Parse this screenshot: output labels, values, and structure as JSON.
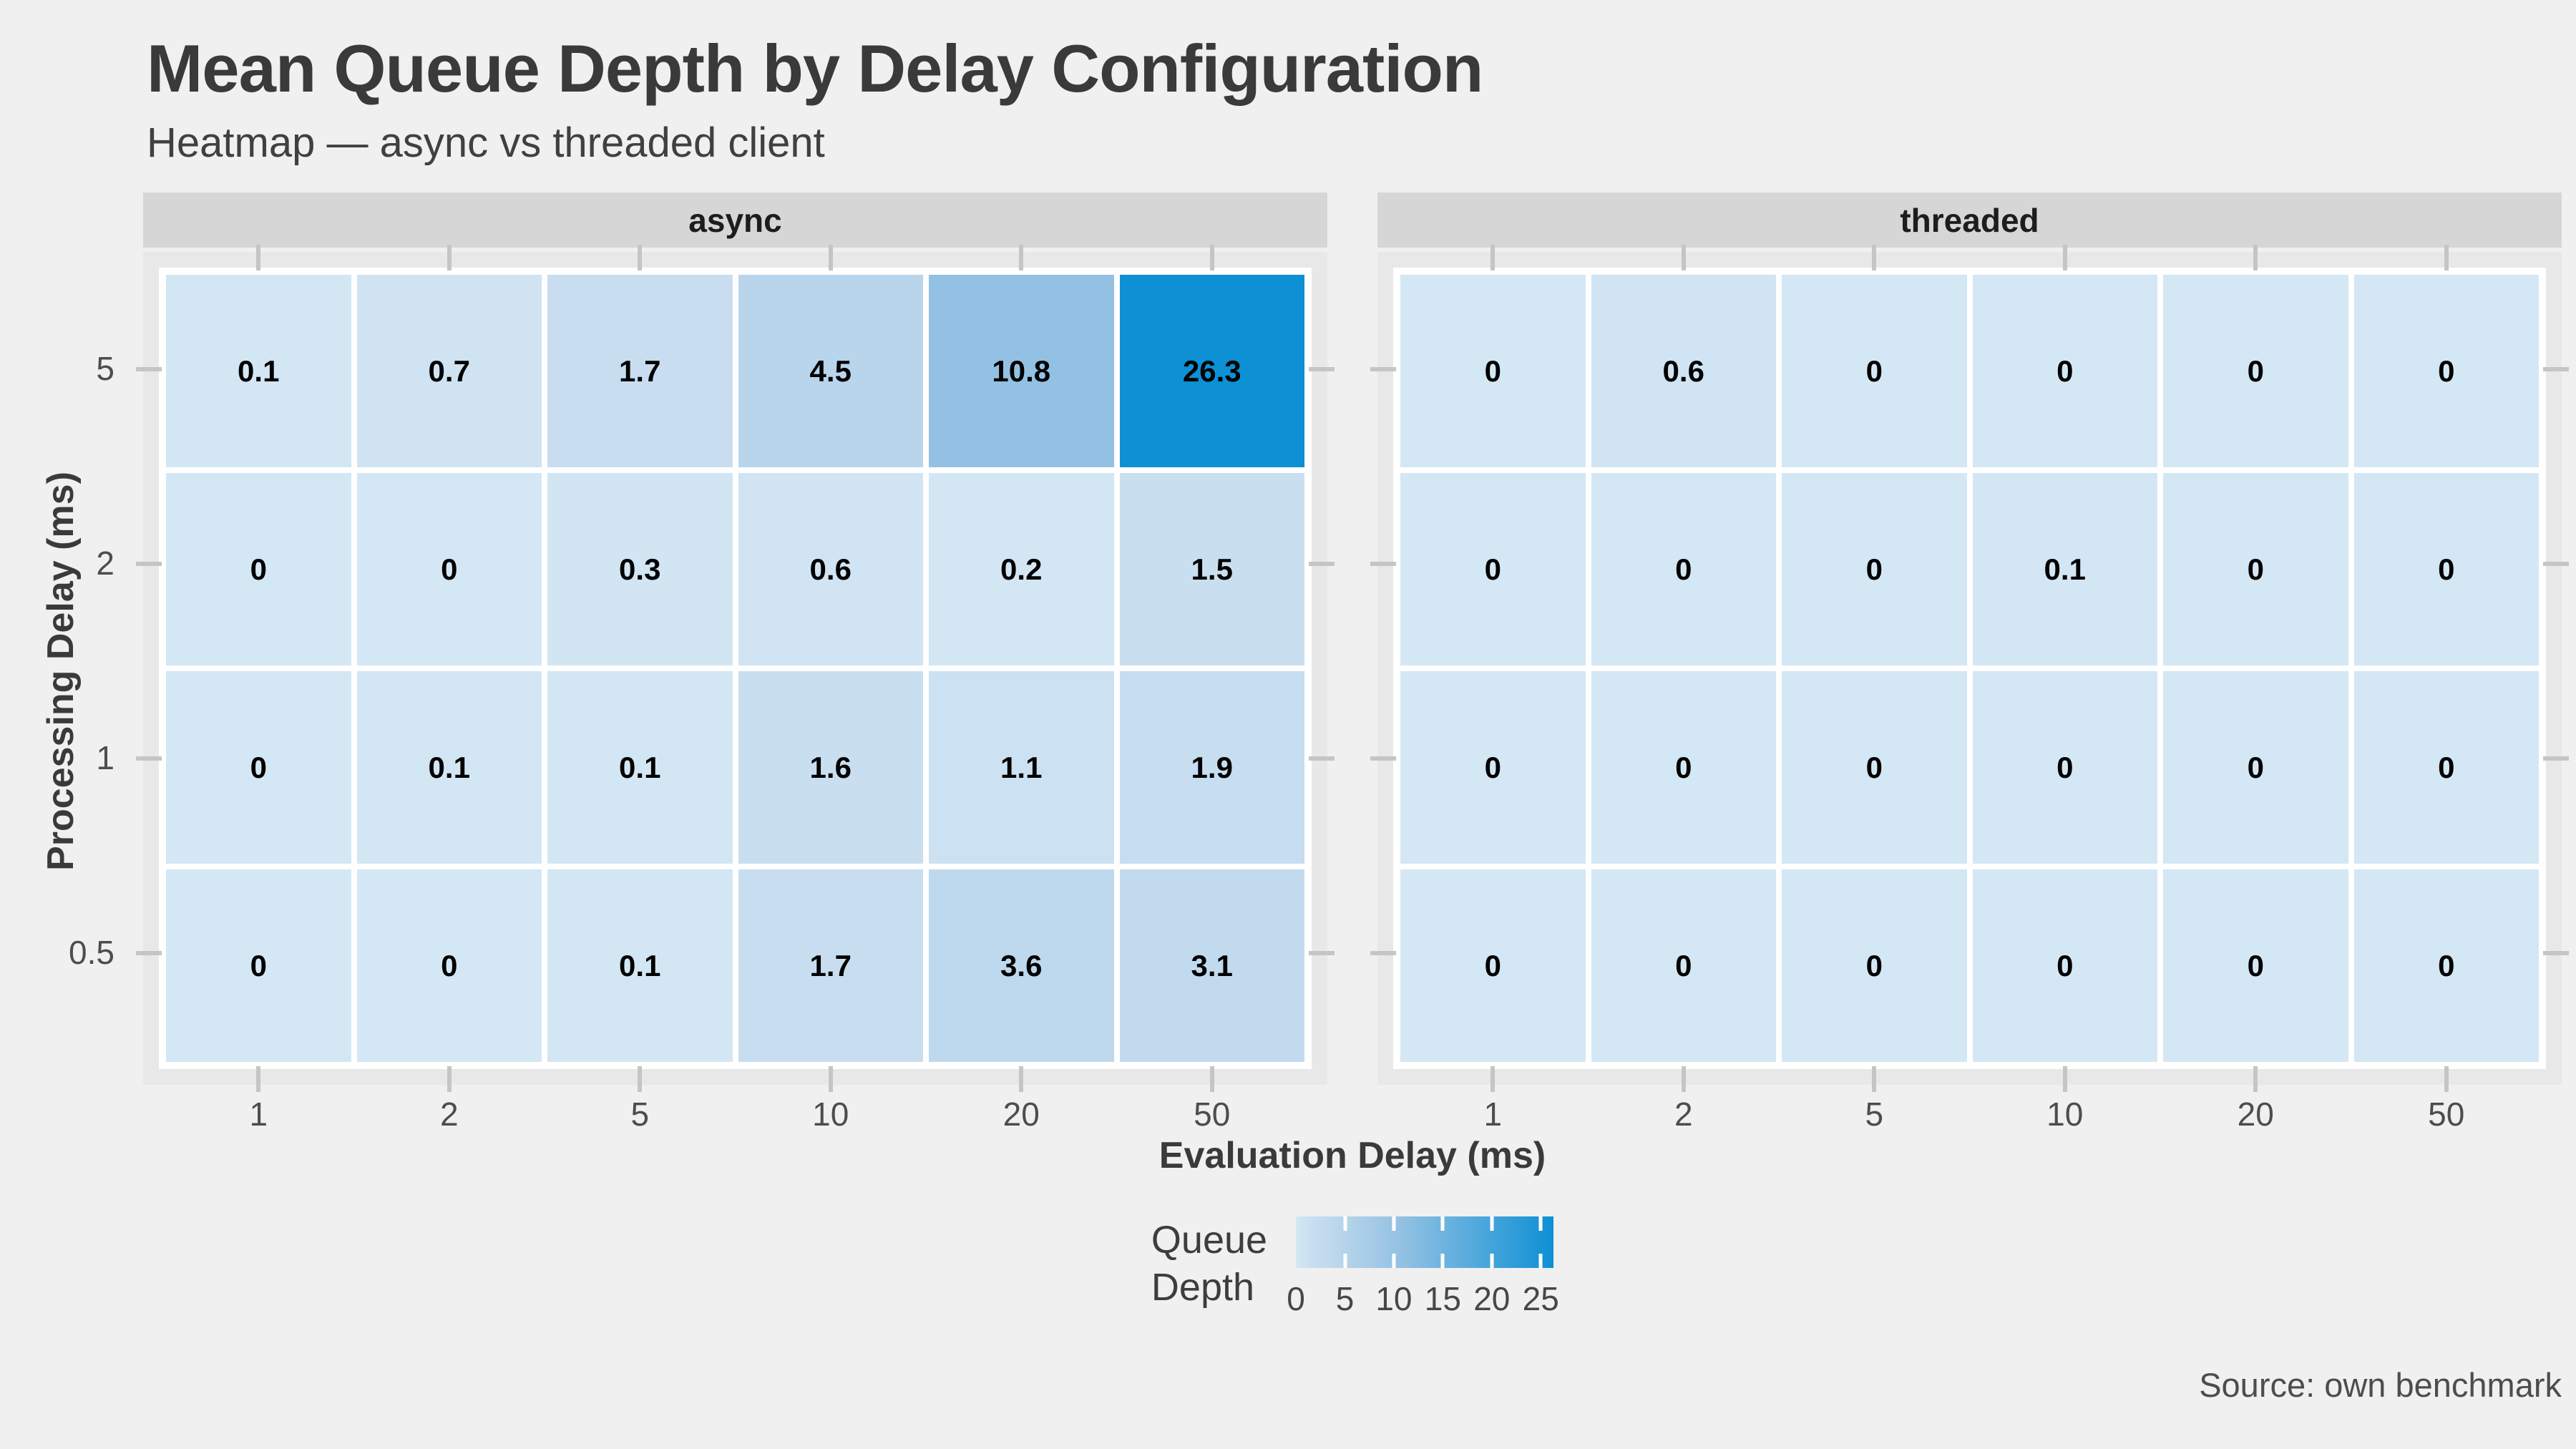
{
  "title": "Mean Queue Depth by Delay Configuration",
  "subtitle": "Heatmap — async vs threaded client",
  "source": "Source: own benchmark",
  "axes": {
    "x_title": "Evaluation Delay (ms)",
    "y_title": "Processing Delay (ms)"
  },
  "legend": {
    "title_lines": [
      "Queue",
      "Depth"
    ],
    "ticks": [
      0,
      5,
      10,
      15,
      20,
      25
    ],
    "max": 26.3
  },
  "colors": {
    "page_bg": "#f0f0f0",
    "strip_bg": "#d6d6d6",
    "panel_bg": "#e8e8e8",
    "tile_border": "#ffffff",
    "axis_tick": "#c5c5c5",
    "axis_text": "#4d4d4d",
    "heading_text": "#3a3a3a",
    "cell_text": "#000000"
  },
  "chart_data": {
    "type": "heatmap",
    "title": "Mean Queue Depth by Delay Configuration",
    "subtitle": "Heatmap — async vs threaded client",
    "xlabel": "Evaluation Delay (ms)",
    "ylabel": "Processing Delay (ms)",
    "x_categories": [
      "1",
      "2",
      "5",
      "10",
      "20",
      "50"
    ],
    "y_categories": [
      "5",
      "2",
      "1",
      "0.5"
    ],
    "facets": [
      {
        "name": "async",
        "values": [
          [
            0.1,
            0.7,
            1.7,
            4.5,
            10.8,
            26.3
          ],
          [
            0,
            0,
            0.3,
            0.6,
            0.2,
            1.5
          ],
          [
            0,
            0.1,
            0.1,
            1.6,
            1.1,
            1.9
          ],
          [
            0,
            0,
            0.1,
            1.7,
            3.6,
            3.1
          ]
        ]
      },
      {
        "name": "threaded",
        "values": [
          [
            0,
            0.6,
            0,
            0,
            0,
            0
          ],
          [
            0,
            0,
            0,
            0.1,
            0,
            0
          ],
          [
            0,
            0,
            0,
            0,
            0,
            0
          ],
          [
            0,
            0,
            0,
            0,
            0,
            0
          ]
        ]
      }
    ],
    "colorscale": {
      "min": 0,
      "max": 26.3,
      "stops": [
        [
          0,
          "#d4e7f4"
        ],
        [
          0.065,
          "#c8def0"
        ],
        [
          0.171,
          "#b9d5eb"
        ],
        [
          0.411,
          "#93c1e3"
        ],
        [
          1,
          "#0d90d4"
        ]
      ]
    },
    "legend_title": "Queue Depth",
    "legend_ticks": [
      0,
      5,
      10,
      15,
      20,
      25
    ],
    "grid": false,
    "legend_position": "bottom-center"
  }
}
